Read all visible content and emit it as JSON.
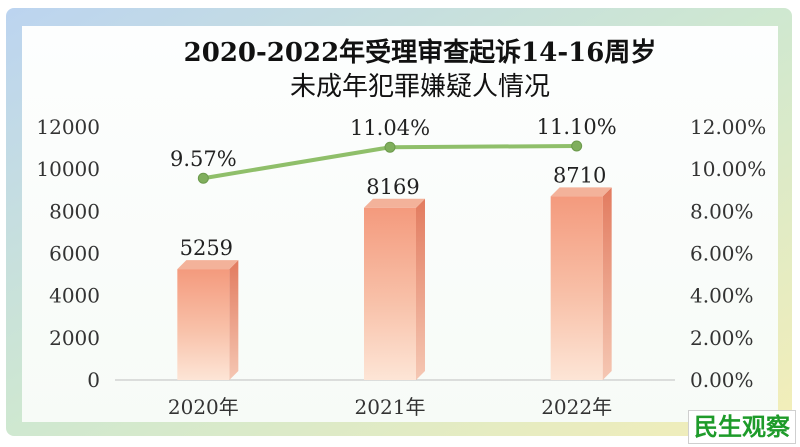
{
  "chart_data": {
    "type": "bar",
    "title_line1": "2020-2022年受理审查起诉14-16周岁",
    "title_line2": "未成年犯罪嫌疑人情况",
    "categories": [
      "2020年",
      "2021年",
      "2022年"
    ],
    "series": [
      {
        "type": "bar",
        "axis": "left",
        "values": [
          5259,
          8169,
          8710
        ],
        "color": "#f5a98c"
      },
      {
        "type": "line",
        "axis": "right",
        "values": [
          9.57,
          11.04,
          11.1
        ],
        "labels": [
          "9.57%",
          "11.04%",
          "11.10%"
        ],
        "color": "#8fbf6a"
      }
    ],
    "y_left": {
      "min": 0,
      "max": 12000,
      "ticks": [
        "0",
        "2000",
        "4000",
        "6000",
        "8000",
        "10000",
        "12000"
      ]
    },
    "y_right": {
      "min": 0,
      "max": 12,
      "ticks": [
        "0.00%",
        "2.00%",
        "4.00%",
        "6.00%",
        "8.00%",
        "10.00%",
        "12.00%"
      ]
    },
    "grid": false
  },
  "watermark": "民生观察"
}
